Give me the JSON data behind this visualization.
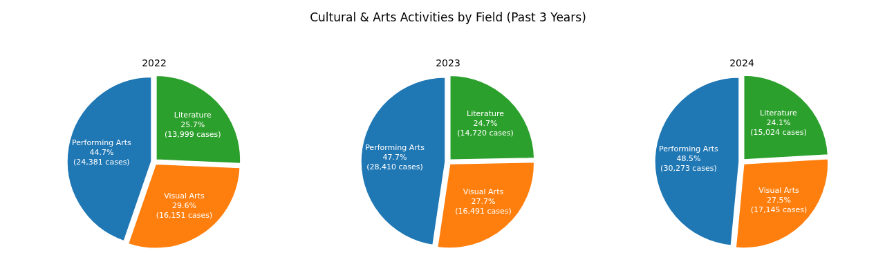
{
  "chart_data": [
    {
      "type": "pie",
      "title": "2022",
      "annotations": [
        "Cultural & Arts Activities by Field (Past 3 Years)"
      ],
      "categories": [
        "Performing Arts",
        "Visual Arts",
        "Literature"
      ],
      "values": [
        24381,
        16151,
        13999
      ],
      "colors": [
        "#1f77b4",
        "#ff7f0e",
        "#2ca02c"
      ],
      "value_labels": [
        "44.7%\n(24,381 cases)",
        "29.6%\n(16,151 cases)",
        "25.7%\n(13,999 cases)"
      ]
    },
    {
      "type": "pie",
      "title": "2023",
      "categories": [
        "Performing Arts",
        "Visual Arts",
        "Literature"
      ],
      "values": [
        28410,
        16491,
        14720
      ],
      "colors": [
        "#1f77b4",
        "#ff7f0e",
        "#2ca02c"
      ],
      "value_labels": [
        "47.7%\n(28,410 cases)",
        "27.7%\n(16,491 cases)",
        "24.7%\n(14,720 cases)"
      ]
    },
    {
      "type": "pie",
      "title": "2024",
      "categories": [
        "Performing Arts",
        "Visual Arts",
        "Literature"
      ],
      "values": [
        30273,
        17145,
        15024
      ],
      "colors": [
        "#1f77b4",
        "#ff7f0e",
        "#2ca02c"
      ],
      "value_labels": [
        "48.5%\n(30,273 cases)",
        "27.5%\n(17,145 cases)",
        "24.1%\n(15,024 cases)"
      ]
    }
  ]
}
